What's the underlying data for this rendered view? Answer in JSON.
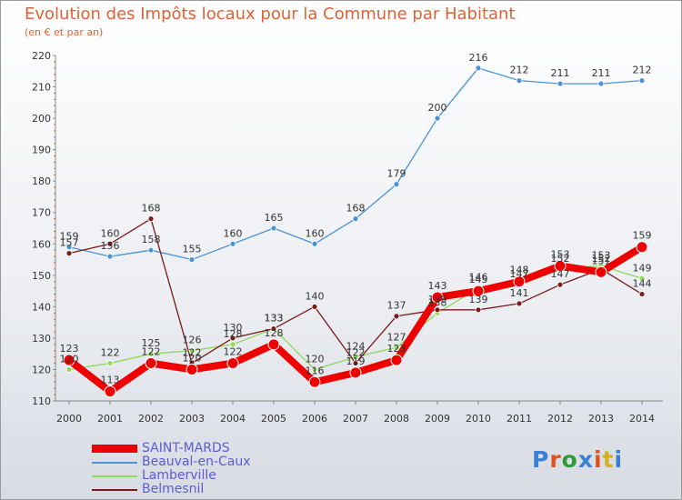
{
  "title": "Evolution des Impôts locaux pour la Commune par Habitant",
  "subtitle": "(en € et par an)",
  "brand": {
    "text": "Proxiti",
    "colors": [
      "#3b7fd4",
      "#e0531e",
      "#2e9a3a",
      "#3b7fd4",
      "#e0531e",
      "#d4b21e",
      "#3b7fd4"
    ]
  },
  "chart_data": {
    "type": "line",
    "title": "Evolution des Impôts locaux pour la Commune par Habitant",
    "xlabel": "",
    "ylabel": "",
    "x": [
      "2000",
      "2001",
      "2002",
      "2003",
      "2004",
      "2005",
      "2006",
      "2007",
      "2008",
      "2009",
      "2010",
      "2011",
      "2012",
      "2013",
      "2014"
    ],
    "ylim": [
      110,
      220
    ],
    "yticks": [
      110,
      120,
      130,
      140,
      150,
      160,
      170,
      180,
      190,
      200,
      210,
      220
    ],
    "grid": false,
    "legend_position": "bottom-left",
    "series": [
      {
        "name": "SAINT-MARDS",
        "color": "#ee0000",
        "values": [
          123,
          113,
          122,
          120,
          122,
          128,
          116,
          119,
          123,
          143,
          145,
          148,
          153,
          151,
          159
        ],
        "labels": [
          "123",
          "113",
          "122",
          "120",
          "122",
          "128",
          "116",
          "119",
          "123",
          "143",
          "145",
          "148",
          "153",
          "151",
          "159"
        ]
      },
      {
        "name": "Beauval-en-Caux",
        "color": "#4a93d6",
        "values": [
          159,
          156,
          158,
          155,
          160,
          165,
          160,
          168,
          179,
          200,
          216,
          212,
          211,
          211,
          212
        ],
        "labels": [
          "159",
          "156",
          "158",
          "155",
          "160",
          "165",
          "160",
          "168",
          "179",
          "200",
          "216",
          "212",
          "211",
          "211",
          "212"
        ]
      },
      {
        "name": "Lamberville",
        "color": "#8ed85a",
        "values": [
          120,
          122,
          125,
          126,
          128,
          133,
          120,
          124,
          127,
          138,
          146,
          147,
          152,
          153,
          149
        ],
        "labels": [
          "120",
          "122",
          "125",
          "126",
          "128",
          "133",
          "120",
          "124",
          "127",
          "138",
          "146",
          "147",
          "152",
          "153",
          "149"
        ]
      },
      {
        "name": "Belmesnil",
        "color": "#7a1a1a",
        "values": [
          157,
          160,
          168,
          122,
          130,
          133,
          140,
          122,
          137,
          139,
          139,
          141,
          147,
          152,
          144
        ],
        "labels": [
          "157",
          "160",
          "168",
          "122",
          "130",
          "133",
          "140",
          "122",
          "137",
          "139",
          "139",
          "141",
          "147",
          "152",
          "144"
        ]
      }
    ]
  }
}
